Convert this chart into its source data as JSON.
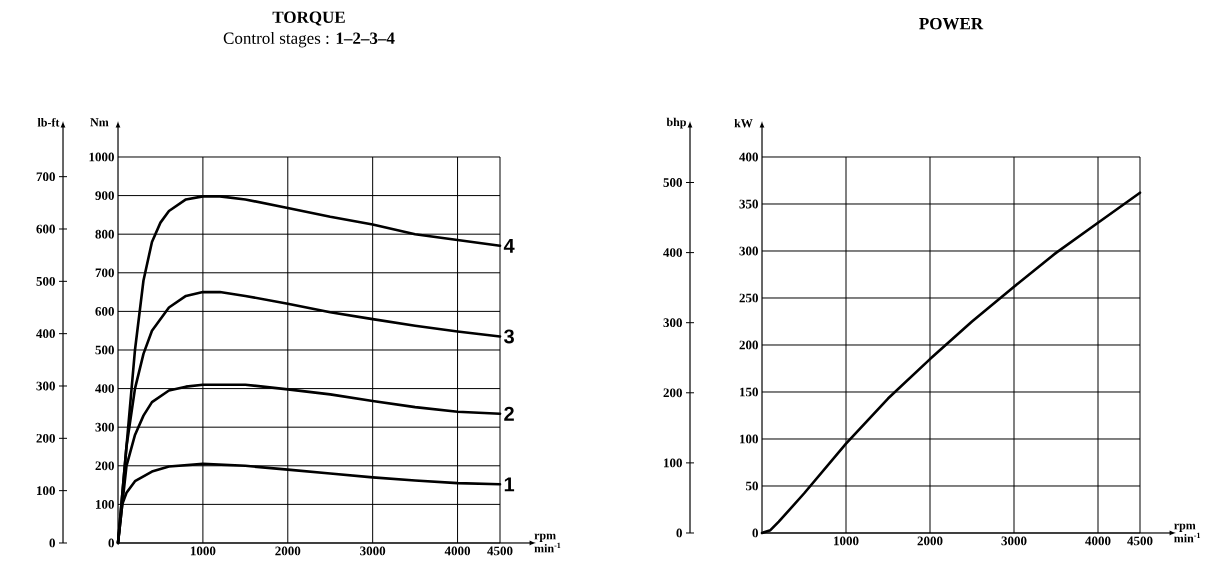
{
  "chart_data": [
    {
      "type": "line",
      "title": "TORQUE",
      "subtitle": "Control stages : **1–2–3–4**",
      "xlabel": "rpm min$^{-1}$",
      "ylabel": "Nm",
      "y2label": "lb-ft",
      "xlim": [
        0,
        4500
      ],
      "xticks": [
        1000,
        2000,
        3000,
        4000,
        4500
      ],
      "ylim": [
        0,
        1000
      ],
      "yticks": [
        0,
        100,
        200,
        300,
        400,
        500,
        600,
        700,
        800,
        900,
        1000
      ],
      "y2lim": [
        0,
        737.6
      ],
      "y2ticks": [
        0,
        100,
        200,
        300,
        400,
        500,
        600,
        700
      ],
      "grid": true,
      "x": [
        0,
        100,
        200,
        300,
        400,
        600,
        800,
        1000,
        1200,
        1500,
        2000,
        2500,
        3000,
        3500,
        4000,
        4500
      ],
      "series": [
        {
          "name": "1",
          "color": "#000000",
          "x": [
            0,
            50,
            100,
            200,
            400,
            600,
            1000,
            1500,
            2000,
            2500,
            3000,
            3500,
            4000,
            4500
          ],
          "values": [
            0,
            100,
            130,
            160,
            185,
            198,
            205,
            200,
            190,
            180,
            170,
            162,
            155,
            152
          ]
        },
        {
          "name": "2",
          "color": "#000000",
          "x": [
            0,
            100,
            200,
            300,
            400,
            600,
            800,
            1000,
            1500,
            2000,
            2500,
            3000,
            3500,
            4000,
            4500
          ],
          "values": [
            0,
            200,
            280,
            330,
            365,
            395,
            405,
            410,
            410,
            398,
            385,
            368,
            352,
            340,
            335
          ]
        },
        {
          "name": "3",
          "color": "#000000",
          "values": [
            0,
            250,
            400,
            490,
            550,
            610,
            640,
            650,
            650,
            640,
            620,
            598,
            580,
            563,
            548,
            535
          ]
        },
        {
          "name": "4",
          "color": "#000000",
          "x": [
            0,
            100,
            200,
            300,
            400,
            500,
            600,
            800,
            1000,
            1200,
            1500,
            2000,
            2500,
            3000,
            3500,
            4000,
            4500
          ],
          "values": [
            0,
            250,
            500,
            680,
            780,
            830,
            860,
            890,
            898,
            898,
            890,
            868,
            845,
            825,
            800,
            785,
            770
          ]
        }
      ]
    },
    {
      "type": "line",
      "title": "POWER",
      "xlabel": "rpm min$^{-1}$",
      "ylabel": "kW",
      "y2label": "bhp",
      "xlim": [
        0,
        4500
      ],
      "xticks": [
        1000,
        2000,
        3000,
        4000,
        4500
      ],
      "ylim": [
        0,
        400
      ],
      "yticks": [
        0,
        50,
        100,
        150,
        200,
        250,
        300,
        350,
        400
      ],
      "y2lim": [
        0,
        536.4
      ],
      "y2ticks": [
        0,
        100,
        200,
        300,
        400,
        500
      ],
      "grid": true,
      "x": [
        0,
        100,
        200,
        500,
        1000,
        1500,
        2000,
        2500,
        3000,
        3500,
        4000,
        4500
      ],
      "series": [
        {
          "color": "#000000",
          "values": [
            0,
            3,
            12,
            42,
            95,
            143,
            185,
            225,
            262,
            298,
            330,
            362
          ]
        }
      ]
    }
  ]
}
